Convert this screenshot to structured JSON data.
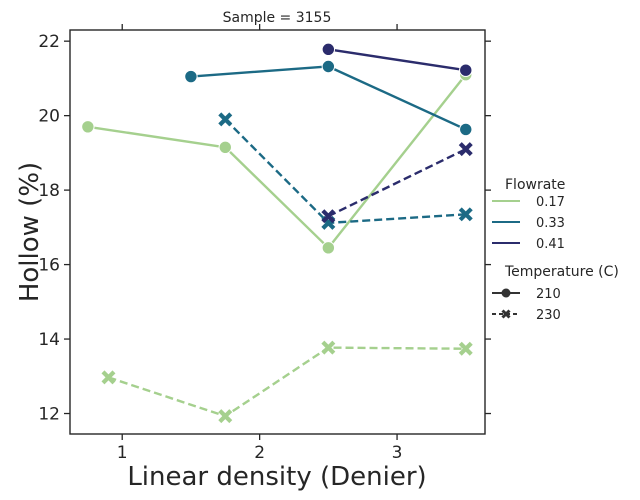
{
  "chart_data": {
    "type": "line",
    "title": "Sample = 3155",
    "xlabel": "Linear density (Denier)",
    "ylabel": "Hollow (%)",
    "xlim": [
      0.62,
      3.64
    ],
    "ylim": [
      11.45,
      22.3
    ],
    "xticks": [
      1,
      2,
      3
    ],
    "yticks": [
      12,
      14,
      16,
      18,
      20,
      22
    ],
    "grid": false,
    "legend_position": "right",
    "legend": {
      "flowrate_title": "Flowrate",
      "flowrate_items": [
        "0.17",
        "0.33",
        "0.41"
      ],
      "temperature_title": "Temperature (C)",
      "temperature_items": [
        "210",
        "230"
      ]
    },
    "series": [
      {
        "flowrate": "0.17",
        "temperature": "210",
        "color": "#a5d08e",
        "dashed": false,
        "marker": "circle",
        "x": [
          0.75,
          1.75,
          2.5,
          3.5
        ],
        "y": [
          19.7,
          19.15,
          16.45,
          21.1
        ]
      },
      {
        "flowrate": "0.33",
        "temperature": "210",
        "color": "#1c6a85",
        "dashed": false,
        "marker": "circle",
        "x": [
          1.5,
          2.5,
          3.5
        ],
        "y": [
          21.05,
          21.32,
          19.63
        ]
      },
      {
        "flowrate": "0.41",
        "temperature": "210",
        "color": "#2b2c6c",
        "dashed": false,
        "marker": "circle",
        "x": [
          2.5,
          3.5
        ],
        "y": [
          21.78,
          21.22
        ]
      },
      {
        "flowrate": "0.17",
        "temperature": "230",
        "color": "#a5d08e",
        "dashed": true,
        "marker": "x",
        "x": [
          0.9,
          1.75,
          2.5,
          3.5
        ],
        "y": [
          12.97,
          11.93,
          13.77,
          13.74
        ]
      },
      {
        "flowrate": "0.33",
        "temperature": "230",
        "color": "#1c6a85",
        "dashed": true,
        "marker": "x",
        "x": [
          1.75,
          2.5,
          3.5
        ],
        "y": [
          19.9,
          17.12,
          17.35
        ]
      },
      {
        "flowrate": "0.41",
        "temperature": "230",
        "color": "#2b2c6c",
        "dashed": true,
        "marker": "x",
        "x": [
          2.5,
          3.5
        ],
        "y": [
          17.3,
          19.1
        ]
      }
    ]
  }
}
